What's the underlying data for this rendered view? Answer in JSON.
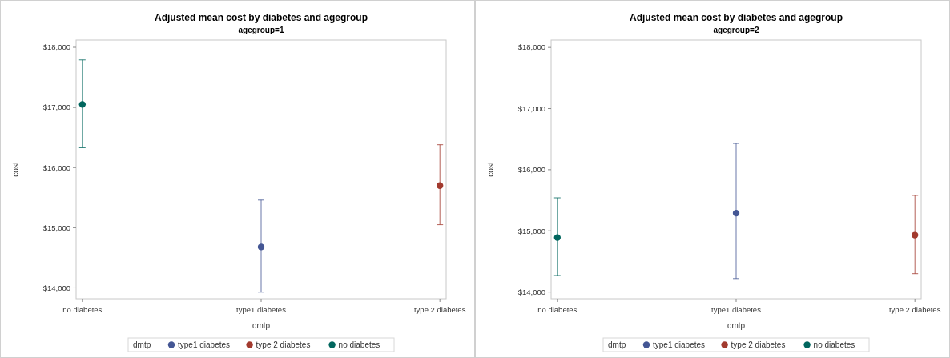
{
  "chart_data": [
    {
      "type": "scatter",
      "title": "Adjusted mean cost by diabetes and agegroup",
      "subtitle": "agegroup=1",
      "xlabel": "dmtp",
      "ylabel": "cost",
      "legend_title": "dmtp",
      "legend": "bottom",
      "marker": "circle",
      "categories": [
        "no diabetes",
        "type1 diabetes",
        "type 2 diabetes"
      ],
      "ylim": [
        13820,
        18120
      ],
      "yticks": [
        {
          "value": 14000,
          "label": "$14,000"
        },
        {
          "value": 15000,
          "label": "$15,000"
        },
        {
          "value": 16000,
          "label": "$16,000"
        },
        {
          "value": 17000,
          "label": "$17,000"
        },
        {
          "value": 18000,
          "label": "$18,000"
        }
      ],
      "series": [
        {
          "name": "type1 diabetes",
          "color": "#445694",
          "values": [
            null,
            14680,
            null
          ],
          "errors": [
            null,
            [
              13930,
              15460
            ],
            null
          ]
        },
        {
          "name": "type 2 diabetes",
          "color": "#a23a2e",
          "values": [
            null,
            null,
            15700
          ],
          "errors": [
            null,
            null,
            [
              15050,
              16380
            ]
          ]
        },
        {
          "name": "no diabetes",
          "color": "#01665e",
          "values": [
            17050,
            null,
            null
          ],
          "errors": [
            [
              16330,
              17790
            ],
            null,
            null
          ]
        }
      ]
    },
    {
      "type": "scatter",
      "title": "Adjusted mean cost by diabetes and agegroup",
      "subtitle": "agegroup=2",
      "xlabel": "dmtp",
      "ylabel": "cost",
      "legend_title": "dmtp",
      "legend": "bottom",
      "marker": "circle",
      "categories": [
        "no diabetes",
        "type1 diabetes",
        "type 2 diabetes"
      ],
      "ylim": [
        13890,
        18120
      ],
      "yticks": [
        {
          "value": 14000,
          "label": "$14,000"
        },
        {
          "value": 15000,
          "label": "$15,000"
        },
        {
          "value": 16000,
          "label": "$16,000"
        },
        {
          "value": 17000,
          "label": "$17,000"
        },
        {
          "value": 18000,
          "label": "$18,000"
        }
      ],
      "series": [
        {
          "name": "type1 diabetes",
          "color": "#445694",
          "values": [
            null,
            15290,
            null
          ],
          "errors": [
            null,
            [
              14220,
              16430
            ],
            null
          ]
        },
        {
          "name": "type 2 diabetes",
          "color": "#a23a2e",
          "values": [
            null,
            null,
            14930
          ],
          "errors": [
            null,
            null,
            [
              14300,
              15580
            ]
          ]
        },
        {
          "name": "no diabetes",
          "color": "#01665e",
          "values": [
            14890,
            null,
            null
          ],
          "errors": [
            [
              14270,
              15540
            ],
            null,
            null
          ]
        }
      ]
    }
  ]
}
